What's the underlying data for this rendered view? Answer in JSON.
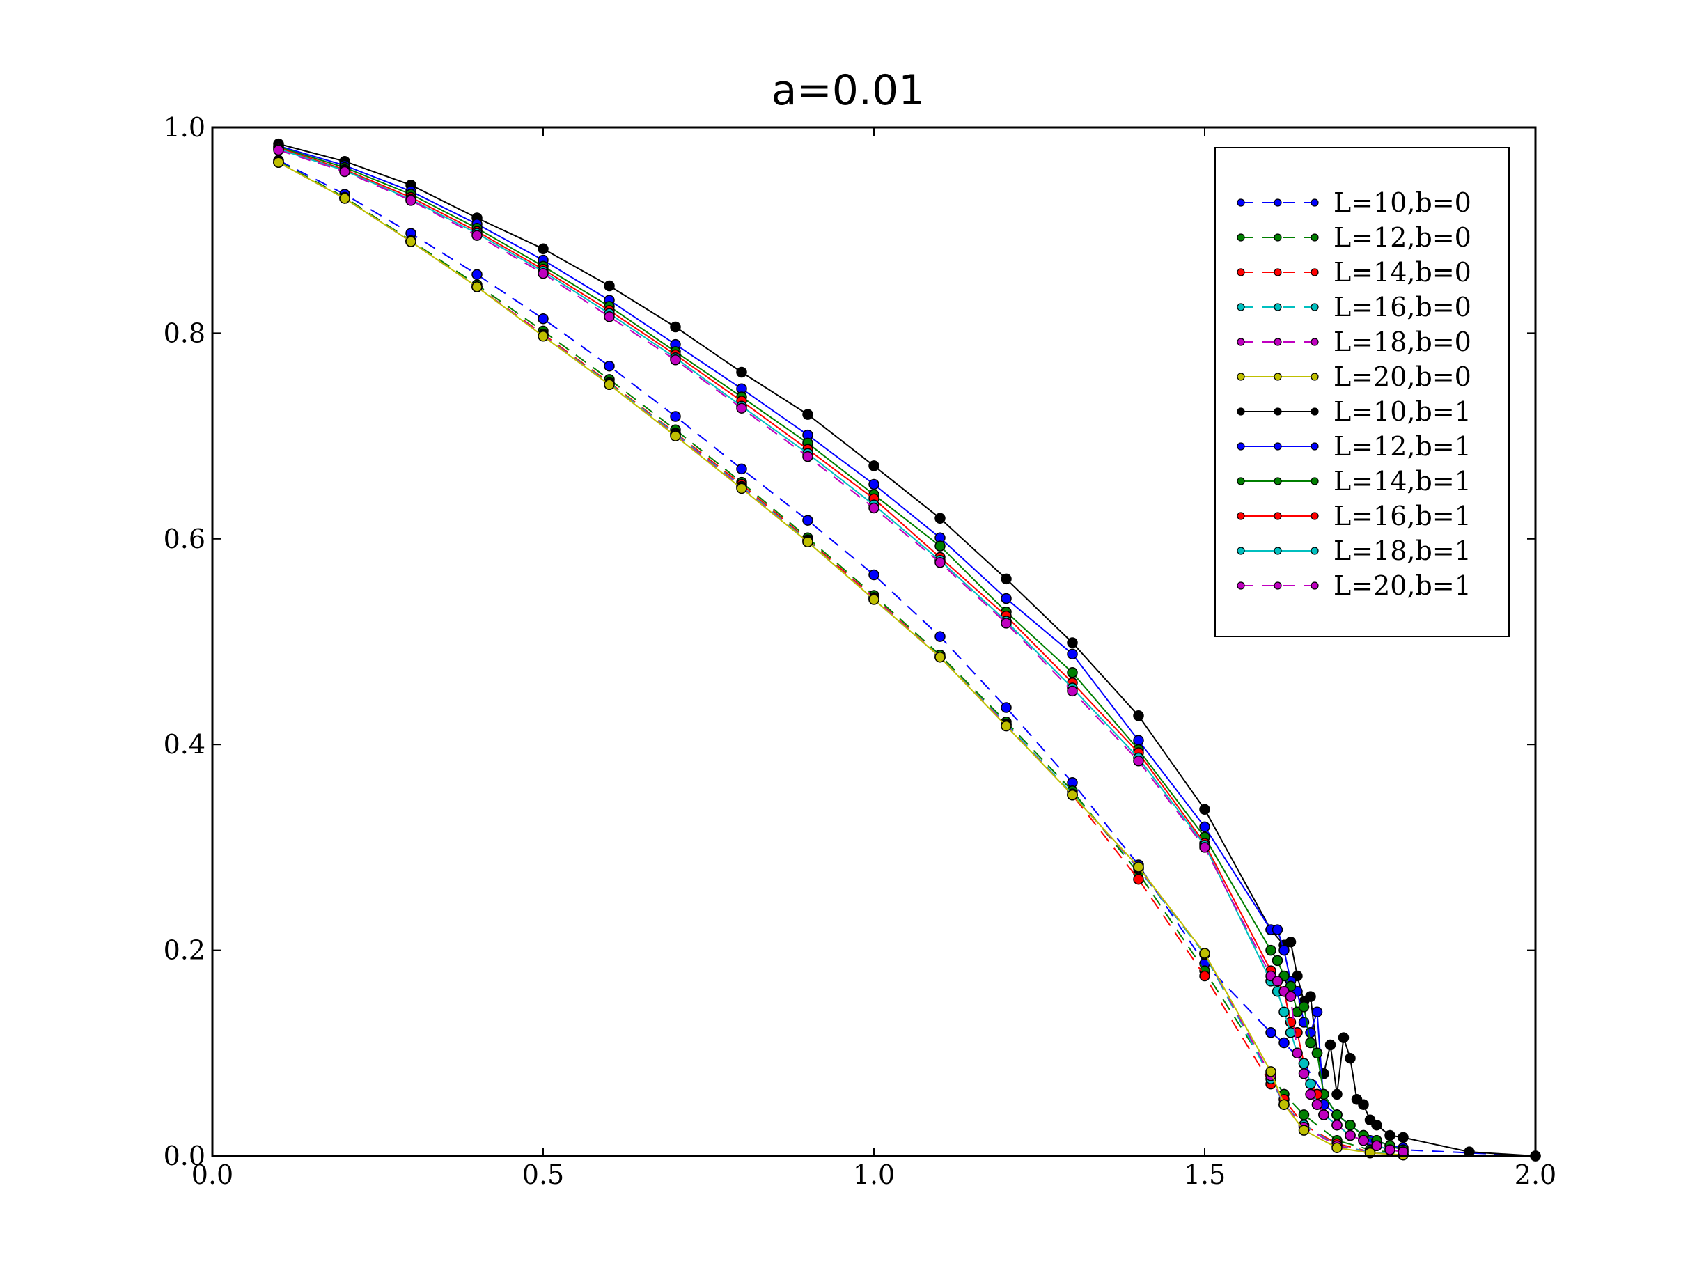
{
  "chart_data": {
    "type": "line",
    "title": "a=0.01",
    "xlabel": "",
    "ylabel": "",
    "xlim": [
      0.0,
      2.0
    ],
    "ylim": [
      0.0,
      1.0
    ],
    "xticks": [
      "0.0",
      "0.5",
      "1.0",
      "1.5",
      "2.0"
    ],
    "yticks": [
      "0.0",
      "0.2",
      "0.4",
      "0.6",
      "0.8",
      "1.0"
    ],
    "grid": false,
    "legend_position": "top-right",
    "colors": {
      "blue": "#0000ff",
      "green": "#007f00",
      "red": "#ff0000",
      "cyan": "#00bfbf",
      "magenta": "#bf00bf",
      "yellow": "#bfbf00",
      "black": "#000000"
    },
    "series": [
      {
        "name": "L=10,b=0",
        "color": "#0000ff",
        "dashed": true,
        "x": [
          0.1,
          0.2,
          0.3,
          0.4,
          0.5,
          0.6,
          0.7,
          0.8,
          0.9,
          1.0,
          1.1,
          1.2,
          1.3,
          1.4,
          1.5,
          1.6,
          1.62,
          1.65,
          1.7,
          1.75,
          1.8,
          2.0
        ],
        "y": [
          0.968,
          0.935,
          0.897,
          0.857,
          0.814,
          0.768,
          0.719,
          0.668,
          0.618,
          0.565,
          0.505,
          0.436,
          0.363,
          0.283,
          0.187,
          0.12,
          0.11,
          0.09,
          0.04,
          0.015,
          0.006,
          0.0
        ]
      },
      {
        "name": "L=12,b=0",
        "color": "#007f00",
        "dashed": true,
        "x": [
          0.1,
          0.2,
          0.3,
          0.4,
          0.5,
          0.6,
          0.7,
          0.8,
          0.9,
          1.0,
          1.1,
          1.2,
          1.3,
          1.4,
          1.5,
          1.6,
          1.62,
          1.65,
          1.7,
          1.75,
          1.8
        ],
        "y": [
          0.967,
          0.932,
          0.89,
          0.847,
          0.802,
          0.755,
          0.706,
          0.655,
          0.601,
          0.545,
          0.487,
          0.422,
          0.355,
          0.275,
          0.18,
          0.08,
          0.06,
          0.04,
          0.015,
          0.006,
          0.002
        ]
      },
      {
        "name": "L=14,b=0",
        "color": "#ff0000",
        "dashed": true,
        "x": [
          0.1,
          0.2,
          0.3,
          0.4,
          0.5,
          0.6,
          0.7,
          0.8,
          0.9,
          1.0,
          1.1,
          1.2,
          1.3,
          1.4,
          1.5,
          1.6,
          1.62,
          1.65,
          1.7,
          1.75,
          1.8
        ],
        "y": [
          0.966,
          0.931,
          0.889,
          0.845,
          0.799,
          0.752,
          0.703,
          0.653,
          0.599,
          0.543,
          0.485,
          0.42,
          0.351,
          0.269,
          0.175,
          0.07,
          0.055,
          0.03,
          0.012,
          0.004,
          0.001
        ]
      },
      {
        "name": "L=16,b=0",
        "color": "#00bfbf",
        "dashed": true,
        "x": [
          0.1,
          0.2,
          0.3,
          0.4,
          0.5,
          0.6,
          0.7,
          0.8,
          0.9,
          1.0,
          1.1,
          1.2,
          1.3,
          1.4,
          1.5,
          1.6,
          1.62,
          1.65,
          1.7,
          1.75,
          1.8
        ],
        "y": [
          0.966,
          0.931,
          0.889,
          0.845,
          0.798,
          0.751,
          0.702,
          0.651,
          0.598,
          0.541,
          0.485,
          0.42,
          0.352,
          0.279,
          0.196,
          0.075,
          0.05,
          0.03,
          0.01,
          0.004,
          0.001
        ]
      },
      {
        "name": "L=18,b=0",
        "color": "#bf00bf",
        "dashed": true,
        "x": [
          0.1,
          0.2,
          0.3,
          0.4,
          0.5,
          0.6,
          0.7,
          0.8,
          0.9,
          1.0,
          1.1,
          1.2,
          1.3,
          1.4,
          1.5,
          1.6,
          1.62,
          1.65,
          1.7,
          1.75,
          1.8
        ],
        "y": [
          0.966,
          0.931,
          0.889,
          0.845,
          0.798,
          0.75,
          0.701,
          0.65,
          0.597,
          0.542,
          0.485,
          0.419,
          0.351,
          0.28,
          0.197,
          0.078,
          0.05,
          0.028,
          0.01,
          0.003,
          0.001
        ]
      },
      {
        "name": "L=20,b=0",
        "color": "#bfbf00",
        "dashed": false,
        "x": [
          0.1,
          0.2,
          0.3,
          0.4,
          0.5,
          0.6,
          0.7,
          0.8,
          0.9,
          1.0,
          1.1,
          1.2,
          1.3,
          1.4,
          1.5,
          1.6,
          1.62,
          1.65,
          1.7,
          1.75,
          1.8
        ],
        "y": [
          0.966,
          0.931,
          0.889,
          0.845,
          0.797,
          0.75,
          0.7,
          0.649,
          0.597,
          0.541,
          0.485,
          0.418,
          0.351,
          0.281,
          0.197,
          0.082,
          0.05,
          0.025,
          0.008,
          0.003,
          0.001
        ]
      },
      {
        "name": "L=10,b=1",
        "color": "#000000",
        "dashed": false,
        "x": [
          0.1,
          0.2,
          0.3,
          0.4,
          0.5,
          0.6,
          0.7,
          0.8,
          0.9,
          1.0,
          1.1,
          1.2,
          1.3,
          1.4,
          1.5,
          1.6,
          1.62,
          1.63,
          1.64,
          1.65,
          1.66,
          1.67,
          1.68,
          1.69,
          1.7,
          1.71,
          1.72,
          1.73,
          1.74,
          1.75,
          1.76,
          1.78,
          1.8,
          1.9,
          2.0
        ],
        "y": [
          0.984,
          0.967,
          0.944,
          0.912,
          0.882,
          0.846,
          0.806,
          0.762,
          0.721,
          0.671,
          0.62,
          0.561,
          0.499,
          0.428,
          0.337,
          0.22,
          0.205,
          0.208,
          0.175,
          0.15,
          0.155,
          0.1,
          0.08,
          0.108,
          0.06,
          0.115,
          0.095,
          0.055,
          0.05,
          0.035,
          0.03,
          0.02,
          0.018,
          0.004,
          0.0
        ]
      },
      {
        "name": "L=12,b=1",
        "color": "#0000ff",
        "dashed": false,
        "x": [
          0.1,
          0.2,
          0.3,
          0.4,
          0.5,
          0.6,
          0.7,
          0.8,
          0.9,
          1.0,
          1.1,
          1.2,
          1.3,
          1.4,
          1.5,
          1.6,
          1.61,
          1.62,
          1.63,
          1.64,
          1.65,
          1.66,
          1.67,
          1.68,
          1.7,
          1.72,
          1.74,
          1.76,
          1.78,
          1.8
        ],
        "y": [
          0.982,
          0.963,
          0.938,
          0.906,
          0.871,
          0.832,
          0.789,
          0.746,
          0.701,
          0.653,
          0.601,
          0.542,
          0.488,
          0.404,
          0.32,
          0.22,
          0.22,
          0.2,
          0.17,
          0.16,
          0.13,
          0.12,
          0.14,
          0.05,
          0.04,
          0.03,
          0.02,
          0.015,
          0.01,
          0.008
        ]
      },
      {
        "name": "L=14,b=1",
        "color": "#007f00",
        "dashed": false,
        "x": [
          0.1,
          0.2,
          0.3,
          0.4,
          0.5,
          0.6,
          0.7,
          0.8,
          0.9,
          1.0,
          1.1,
          1.2,
          1.3,
          1.4,
          1.5,
          1.6,
          1.61,
          1.62,
          1.63,
          1.64,
          1.65,
          1.66,
          1.67,
          1.68,
          1.7,
          1.72,
          1.74,
          1.76,
          1.78,
          1.8
        ],
        "y": [
          0.981,
          0.961,
          0.935,
          0.902,
          0.865,
          0.826,
          0.782,
          0.738,
          0.693,
          0.643,
          0.593,
          0.529,
          0.47,
          0.395,
          0.31,
          0.2,
          0.19,
          0.175,
          0.165,
          0.14,
          0.145,
          0.11,
          0.1,
          0.06,
          0.04,
          0.03,
          0.02,
          0.015,
          0.01,
          0.006
        ]
      },
      {
        "name": "L=16,b=1",
        "color": "#ff0000",
        "dashed": false,
        "x": [
          0.1,
          0.2,
          0.3,
          0.4,
          0.5,
          0.6,
          0.7,
          0.8,
          0.9,
          1.0,
          1.1,
          1.2,
          1.3,
          1.4,
          1.5,
          1.6,
          1.61,
          1.62,
          1.63,
          1.64,
          1.65,
          1.66,
          1.67,
          1.68,
          1.7,
          1.72,
          1.74,
          1.76,
          1.78,
          1.8
        ],
        "y": [
          0.98,
          0.959,
          0.932,
          0.899,
          0.862,
          0.822,
          0.779,
          0.734,
          0.687,
          0.639,
          0.582,
          0.525,
          0.46,
          0.392,
          0.304,
          0.18,
          0.17,
          0.16,
          0.13,
          0.12,
          0.09,
          0.07,
          0.06,
          0.04,
          0.03,
          0.02,
          0.015,
          0.01,
          0.006,
          0.004
        ]
      },
      {
        "name": "L=18,b=1",
        "color": "#00bfbf",
        "dashed": false,
        "x": [
          0.1,
          0.2,
          0.3,
          0.4,
          0.5,
          0.6,
          0.7,
          0.8,
          0.9,
          1.0,
          1.1,
          1.2,
          1.3,
          1.4,
          1.5,
          1.6,
          1.61,
          1.62,
          1.63,
          1.64,
          1.65,
          1.66,
          1.67,
          1.68,
          1.7,
          1.72,
          1.74,
          1.76,
          1.78,
          1.8
        ],
        "y": [
          0.979,
          0.958,
          0.93,
          0.897,
          0.86,
          0.819,
          0.776,
          0.729,
          0.683,
          0.633,
          0.579,
          0.52,
          0.455,
          0.387,
          0.302,
          0.17,
          0.16,
          0.14,
          0.12,
          0.1,
          0.09,
          0.07,
          0.05,
          0.04,
          0.03,
          0.02,
          0.015,
          0.01,
          0.006,
          0.004
        ]
      },
      {
        "name": "L=20,b=1",
        "color": "#bf00bf",
        "dashed": true,
        "x": [
          0.1,
          0.2,
          0.3,
          0.4,
          0.5,
          0.6,
          0.7,
          0.8,
          0.9,
          1.0,
          1.1,
          1.2,
          1.3,
          1.4,
          1.5,
          1.6,
          1.61,
          1.62,
          1.63,
          1.64,
          1.65,
          1.66,
          1.67,
          1.68,
          1.7,
          1.72,
          1.74,
          1.76,
          1.78,
          1.8
        ],
        "y": [
          0.978,
          0.957,
          0.929,
          0.895,
          0.858,
          0.816,
          0.774,
          0.727,
          0.68,
          0.63,
          0.577,
          0.518,
          0.452,
          0.384,
          0.3,
          0.175,
          0.17,
          0.16,
          0.155,
          0.1,
          0.08,
          0.06,
          0.05,
          0.04,
          0.03,
          0.02,
          0.015,
          0.01,
          0.006,
          0.004
        ]
      }
    ]
  }
}
